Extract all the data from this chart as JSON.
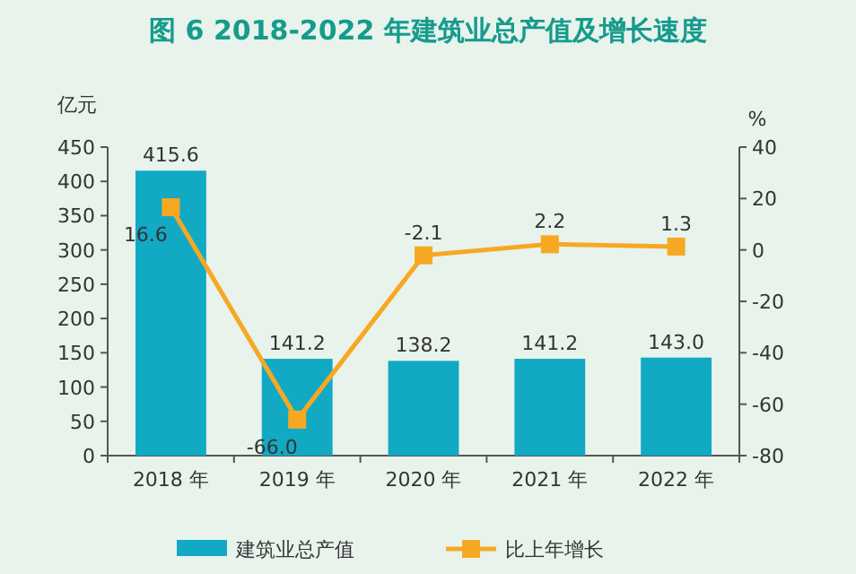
{
  "chart_data": {
    "type": "bar",
    "title": "图 6  2018-2022 年建筑业总产值及增长速度",
    "ylabel": "亿元",
    "y2label": "%",
    "categories": [
      "2018 年",
      "2019 年",
      "2020 年",
      "2021 年",
      "2022 年"
    ],
    "series": [
      {
        "name": "建筑业总产值",
        "color": "#12a9c4",
        "values": [
          415.6,
          141.2,
          138.2,
          141.2,
          143.0
        ],
        "value_labels": [
          "415.6",
          "141.2",
          "138.2",
          "141.2",
          "143.0"
        ]
      },
      {
        "name": "比上年增长",
        "type": "line",
        "axis": "y2",
        "color": "#f7a823",
        "marker": "square",
        "values": [
          16.6,
          -66.0,
          -2.1,
          2.2,
          1.3
        ],
        "value_labels": [
          "16.6",
          "-66.0",
          "-2.1",
          "2.2",
          "1.3"
        ]
      }
    ],
    "ylim": [
      0,
      450
    ],
    "yticks": [
      0,
      50,
      100,
      150,
      200,
      250,
      300,
      350,
      400,
      450
    ],
    "y2lim": [
      -80,
      40
    ],
    "y2ticks": [
      -80,
      -60,
      -40,
      -20,
      0,
      20,
      40
    ],
    "legend": "bottom"
  }
}
